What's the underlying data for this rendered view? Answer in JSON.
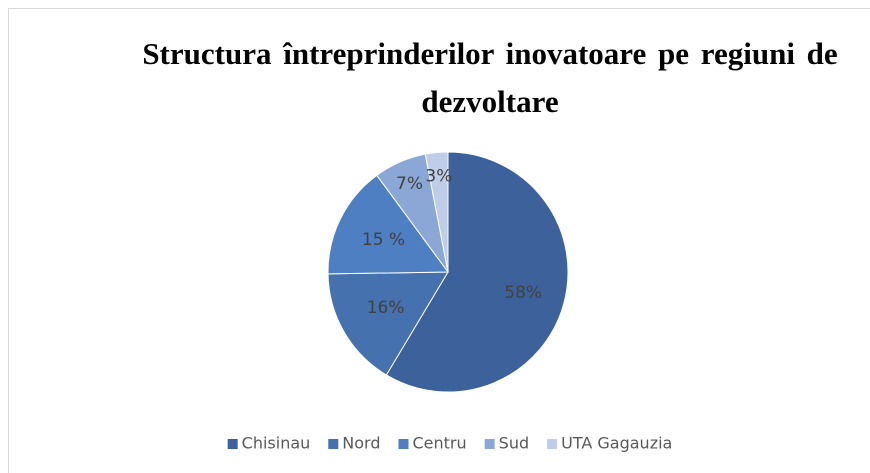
{
  "chart_data": {
    "type": "pie",
    "title": "Structura întreprinderilor inovatoare pe regiuni de dezvoltare",
    "categories": [
      "Chisinau",
      "Nord",
      "Centru",
      "Sud",
      "UTA Gagauzia"
    ],
    "values": [
      58,
      16,
      15,
      7,
      3
    ],
    "value_labels": [
      "58%",
      "16%",
      "15 %",
      "7%",
      "3%"
    ],
    "colors": [
      "#3c619b",
      "#4571ae",
      "#4e7fc3",
      "#8ba7d6",
      "#bfcde8"
    ],
    "legend": "bottom"
  }
}
